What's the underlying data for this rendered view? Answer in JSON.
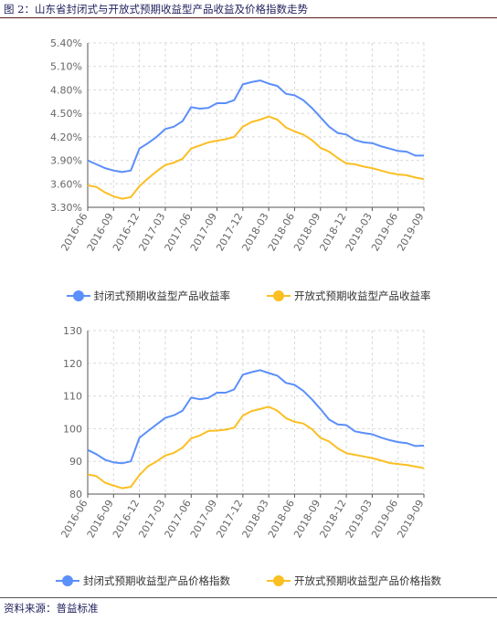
{
  "header": {
    "title": "图 2：山东省封闭式与开放式预期收益型产品收益及价格指数走势"
  },
  "footer": {
    "source": "资料来源：普益标准"
  },
  "colors": {
    "closed": "#5b8ff9",
    "open": "#fbbf24",
    "grid": "#d9d9d9",
    "axis": "#555555"
  },
  "chart_data": [
    {
      "type": "line",
      "title": "",
      "x": [
        "2016-06",
        "2016-07",
        "2016-08",
        "2016-09",
        "2016-10",
        "2016-11",
        "2016-12",
        "2017-01",
        "2017-02",
        "2017-03",
        "2017-04",
        "2017-05",
        "2017-06",
        "2017-07",
        "2017-08",
        "2017-09",
        "2017-10",
        "2017-11",
        "2017-12",
        "2018-01",
        "2018-02",
        "2018-03",
        "2018-04",
        "2018-05",
        "2018-06",
        "2018-07",
        "2018-08",
        "2018-09",
        "2018-10",
        "2018-11",
        "2018-12",
        "2019-01",
        "2019-02",
        "2019-03",
        "2019-04",
        "2019-05",
        "2019-06",
        "2019-07",
        "2019-08",
        "2019-09"
      ],
      "xticks": [
        "2016-06",
        "2016-09",
        "2016-12",
        "2017-03",
        "2017-06",
        "2017-09",
        "2017-12",
        "2018-03",
        "2018-06",
        "2018-09",
        "2018-12",
        "2019-03",
        "2019-06",
        "2019-09"
      ],
      "ylim": [
        3.3,
        5.4
      ],
      "yticks": [
        "3.30%",
        "3.60%",
        "3.90%",
        "4.20%",
        "4.50%",
        "4.80%",
        "5.10%",
        "5.40%"
      ],
      "grid": true,
      "legend": "bottom-center",
      "series": [
        {
          "name": "封闭式预期收益型产品收益率",
          "color_key": "closed",
          "values": [
            3.9,
            3.85,
            3.8,
            3.77,
            3.75,
            3.77,
            4.05,
            4.12,
            4.2,
            4.3,
            4.33,
            4.4,
            4.58,
            4.56,
            4.57,
            4.63,
            4.63,
            4.67,
            4.87,
            4.9,
            4.92,
            4.88,
            4.85,
            4.75,
            4.73,
            4.67,
            4.57,
            4.45,
            4.33,
            4.25,
            4.23,
            4.16,
            4.13,
            4.12,
            4.08,
            4.05,
            4.02,
            4.01,
            3.96,
            3.96
          ]
        },
        {
          "name": "开放式预期收益型产品收益率",
          "color_key": "open",
          "values": [
            3.58,
            3.56,
            3.49,
            3.44,
            3.41,
            3.43,
            3.57,
            3.67,
            3.76,
            3.84,
            3.87,
            3.92,
            4.05,
            4.09,
            4.13,
            4.15,
            4.17,
            4.2,
            4.33,
            4.39,
            4.42,
            4.46,
            4.42,
            4.32,
            4.27,
            4.23,
            4.16,
            4.06,
            4.01,
            3.93,
            3.86,
            3.85,
            3.82,
            3.8,
            3.77,
            3.74,
            3.72,
            3.71,
            3.68,
            3.66
          ]
        }
      ]
    },
    {
      "type": "line",
      "title": "",
      "x": [
        "2016-06",
        "2016-07",
        "2016-08",
        "2016-09",
        "2016-10",
        "2016-11",
        "2016-12",
        "2017-01",
        "2017-02",
        "2017-03",
        "2017-04",
        "2017-05",
        "2017-06",
        "2017-07",
        "2017-08",
        "2017-09",
        "2017-10",
        "2017-11",
        "2017-12",
        "2018-01",
        "2018-02",
        "2018-03",
        "2018-04",
        "2018-05",
        "2018-06",
        "2018-07",
        "2018-08",
        "2018-09",
        "2018-10",
        "2018-11",
        "2018-12",
        "2019-01",
        "2019-02",
        "2019-03",
        "2019-04",
        "2019-05",
        "2019-06",
        "2019-07",
        "2019-08",
        "2019-09"
      ],
      "xticks": [
        "2016-06",
        "2016-09",
        "2016-12",
        "2017-03",
        "2017-06",
        "2017-09",
        "2017-12",
        "2018-03",
        "2018-06",
        "2018-09",
        "2018-12",
        "2019-03",
        "2019-06",
        "2019-09"
      ],
      "ylim": [
        80,
        130
      ],
      "yticks": [
        "80",
        "90",
        "100",
        "110",
        "120",
        "130"
      ],
      "grid": true,
      "legend": "bottom-center",
      "series": [
        {
          "name": "封闭式预期收益型产品价格指数",
          "color_key": "closed",
          "values": [
            93.5,
            92.2,
            90.5,
            89.7,
            89.4,
            90.0,
            97.2,
            99.3,
            101.3,
            103.3,
            104.1,
            105.5,
            109.5,
            109.0,
            109.4,
            111.0,
            111.0,
            112.0,
            116.5,
            117.3,
            117.9,
            117.0,
            116.2,
            114.0,
            113.4,
            111.6,
            109.0,
            106.0,
            102.8,
            101.3,
            101.1,
            99.2,
            98.7,
            98.3,
            97.3,
            96.5,
            95.9,
            95.6,
            94.7,
            94.8
          ]
        },
        {
          "name": "开放式预期收益型产品价格指数",
          "color_key": "open",
          "values": [
            86.0,
            85.5,
            83.5,
            82.6,
            81.8,
            82.2,
            85.8,
            88.5,
            90.0,
            91.8,
            92.6,
            94.2,
            97.0,
            97.9,
            99.3,
            99.4,
            99.7,
            100.3,
            104.0,
            105.4,
            106.0,
            106.7,
            105.5,
            103.2,
            102.1,
            101.6,
            99.9,
            97.2,
            96.1,
            94.0,
            92.5,
            92.0,
            91.5,
            91.0,
            90.3,
            89.5,
            89.2,
            88.9,
            88.4,
            87.9
          ]
        }
      ]
    }
  ]
}
